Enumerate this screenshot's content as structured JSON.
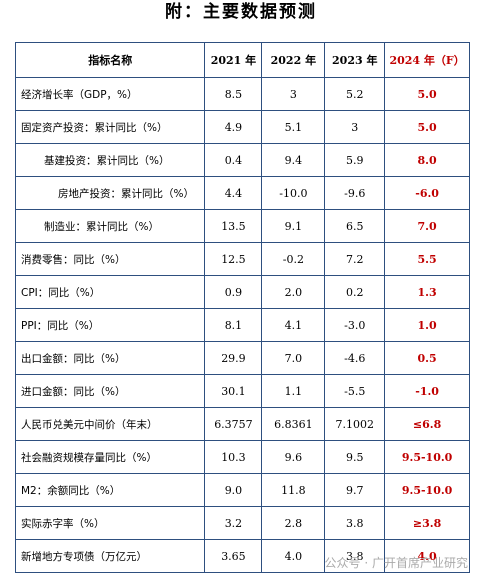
{
  "title": "附：主要数据预测",
  "table": {
    "header": [
      "指标名称",
      "2021 年",
      "2022 年",
      "2023 年",
      "2024 年（F）"
    ],
    "rows": [
      [
        "经济增长率（GDP，%）",
        "8.5",
        "3",
        "5.2",
        "5.0"
      ],
      [
        "固定资产投资：累计同比（%）",
        "4.9",
        "5.1",
        "3",
        "5.0"
      ],
      [
        "基建投资：累计同比（%）",
        "0.4",
        "9.4",
        "5.9",
        "8.0"
      ],
      [
        "房地产投资：累计同比（%）",
        "4.4",
        "-10.0",
        "-9.6",
        "-6.0"
      ],
      [
        "制造业：累计同比（%）",
        "13.5",
        "9.1",
        "6.5",
        "7.0"
      ],
      [
        "消费零售：同比（%）",
        "12.5",
        "-0.2",
        "7.2",
        "5.5"
      ],
      [
        "CPI：同比（%）",
        "0.9",
        "2.0",
        "0.2",
        "1.3"
      ],
      [
        "PPI：同比（%）",
        "8.1",
        "4.1",
        "-3.0",
        "1.0"
      ],
      [
        "出口金额：同比（%）",
        "29.9",
        "7.0",
        "-4.6",
        "0.5"
      ],
      [
        "进口金额：同比（%）",
        "30.1",
        "1.1",
        "-5.5",
        "-1.0"
      ],
      [
        "人民币兑美元中间价（年末）",
        "6.3757",
        "6.8361",
        "7.1002",
        "≤6.8"
      ],
      [
        "社会融资规模存量同比（%）",
        "10.3",
        "9.6",
        "9.5",
        "9.5-10.0"
      ],
      [
        "M2：余额同比（%）",
        "9.0",
        "11.8",
        "9.7",
        "9.5-10.0"
      ],
      [
        "实际赤字率（%）",
        "3.2",
        "2.8",
        "3.8",
        "≥3.8"
      ],
      [
        "新增地方专项债（万亿元）",
        "3.65",
        "4.0",
        "3.8",
        "4.0"
      ]
    ]
  },
  "watermark": "公众号 · 广开首席产业研究"
}
